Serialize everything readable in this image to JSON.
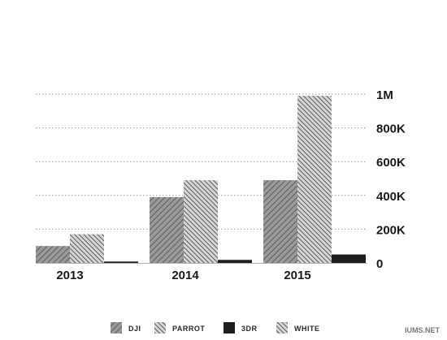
{
  "chart_data": {
    "type": "bar",
    "categories": [
      "2013",
      "2014",
      "2015"
    ],
    "series": [
      {
        "name": "DJI",
        "values": [
          100000,
          390000,
          490000
        ],
        "color": "#7a7a7a",
        "pattern": "hatch-light"
      },
      {
        "name": "PARROT",
        "values": [
          170000,
          490000,
          990000
        ],
        "color": "#7a7a7a",
        "pattern": "hatch-dense"
      },
      {
        "name": "3DR",
        "values": [
          8000,
          18000,
          50000
        ],
        "color": "#1a1a1a",
        "pattern": "solid-dark"
      },
      {
        "name": "WHITE",
        "values": [
          0,
          0,
          0
        ],
        "color": "#7a7a7a",
        "pattern": "hatch-dense"
      }
    ],
    "y_ticks": [
      {
        "value": 0,
        "label": "0"
      },
      {
        "value": 200000,
        "label": "200K"
      },
      {
        "value": 400000,
        "label": "400K"
      },
      {
        "value": 600000,
        "label": "600K"
      },
      {
        "value": 800000,
        "label": "800K"
      },
      {
        "value": 1000000,
        "label": "1M"
      }
    ],
    "ylim": [
      0,
      1000000
    ],
    "grid": true,
    "y_axis_side": "right",
    "legend_position": "bottom"
  },
  "watermark": "IUMS.NET"
}
